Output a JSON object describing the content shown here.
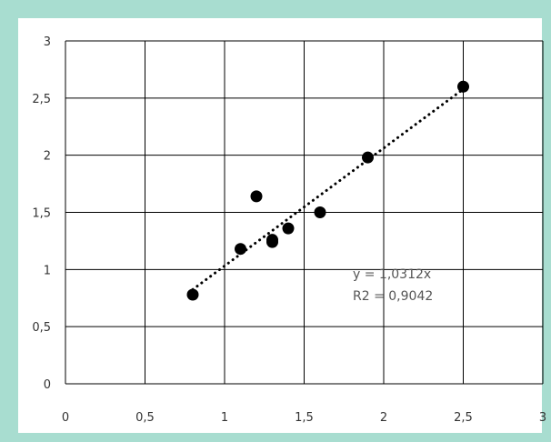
{
  "chart_data": {
    "type": "scatter",
    "xlim": [
      0,
      3
    ],
    "ylim": [
      0,
      3
    ],
    "x_ticks": [
      "0",
      "0,5",
      "1",
      "1,5",
      "2",
      "2,5",
      "3"
    ],
    "y_ticks": [
      "0",
      "0,5",
      "1",
      "1,5",
      "2",
      "2,5",
      "3"
    ],
    "grid": true,
    "points": [
      {
        "x": 0.8,
        "y": 0.78
      },
      {
        "x": 1.1,
        "y": 1.18
      },
      {
        "x": 1.2,
        "y": 1.64
      },
      {
        "x": 1.3,
        "y": 1.24
      },
      {
        "x": 1.3,
        "y": 1.26
      },
      {
        "x": 1.4,
        "y": 1.36
      },
      {
        "x": 1.6,
        "y": 1.5
      },
      {
        "x": 1.9,
        "y": 1.98
      },
      {
        "x": 2.5,
        "y": 2.6
      }
    ],
    "trendline": {
      "type": "linear",
      "slope": 1.0312,
      "x_range": [
        0.8,
        2.5
      ],
      "equation": "y = 1,0312x",
      "r2_label": "R2 = 0,9042"
    },
    "colors": {
      "point": "#000000",
      "trendline": "#000000",
      "grid": "#000000",
      "frame_border": "#a8ddd0"
    }
  }
}
